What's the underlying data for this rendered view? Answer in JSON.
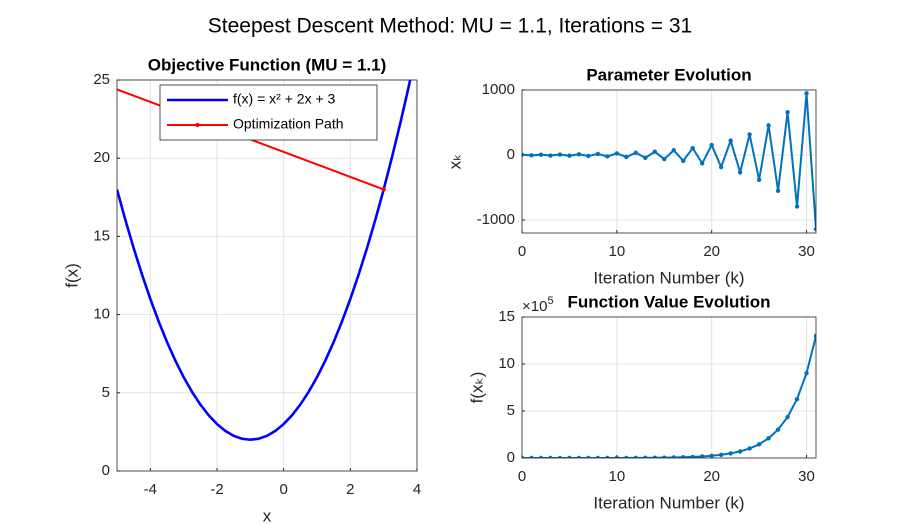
{
  "figure_title": "Steepest Descent Method: MU = 1.1, Iterations = 31",
  "chart_data": [
    {
      "type": "line",
      "title": "Objective Function (MU = 1.1)",
      "xlabel": "x",
      "ylabel": "f(x)",
      "xlim": [
        -5,
        4
      ],
      "ylim": [
        0,
        25
      ],
      "xticks": [
        -4,
        -2,
        0,
        2,
        4
      ],
      "yticks": [
        0,
        5,
        10,
        15,
        20,
        25
      ],
      "grid": true,
      "legend": "north",
      "series": [
        {
          "name": "f(x) = x² + 2x + 3",
          "color": "#0000ff",
          "marker": false,
          "x": [
            -5,
            -4.75,
            -4.5,
            -4.25,
            -4,
            -3.75,
            -3.5,
            -3.25,
            -3,
            -2.75,
            -2.5,
            -2.25,
            -2,
            -1.75,
            -1.5,
            -1.25,
            -1,
            -0.75,
            -0.5,
            -0.25,
            0,
            0.25,
            0.5,
            0.75,
            1,
            1.25,
            1.5,
            1.75,
            2,
            2.25,
            2.5,
            2.75,
            3,
            3.25,
            3.5,
            3.75,
            4
          ],
          "values": [
            18,
            16.0625,
            14.25,
            12.5625,
            11,
            9.5625,
            8.25,
            7.0625,
            6,
            5.0625,
            4.25,
            3.5625,
            3,
            2.5625,
            2.25,
            2.0625,
            2,
            2.0625,
            2.25,
            2.5625,
            3,
            3.5625,
            4.25,
            5.0625,
            6,
            7.0625,
            8.25,
            9.5625,
            11,
            12.5625,
            14.25,
            16.0625,
            18,
            20.0625,
            22.25,
            24.5625,
            27
          ]
        },
        {
          "name": "Optimization Path",
          "color": "#ff0000",
          "marker": true,
          "x": [
            3,
            -5.8,
            4.76,
            -7.91,
            7.29,
            -10.95,
            10.94,
            -15.33,
            16.2,
            -21.64,
            23.77,
            -30.72,
            34.66,
            -43.8,
            50.36,
            -62.63,
            72.95,
            -89.74,
            105.49,
            -128.79,
            152.35,
            -185.02,
            219.82,
            -265.99,
            316.99,
            -382.58,
            456.9,
            -550.48,
            658.38,
            -792.25,
            948.51,
            -1140.41
          ],
          "values": [
            18,
            25.04,
            35.18,
            49.78,
            70.8,
            101.07,
            144.66,
            207.43,
            297.82,
            427.97,
            615.4,
            885.3,
            1273.95,
            1833.61,
            2639.51,
            3800.02,
            5471.15,
            7877.57,
            11342.82,
            16332.8,
            23518.3,
            33865.5,
            48765.5,
            70221.4,
            101118,
            145609,
            209676,
            301933,
            434782,
            626086,
            901562,
            1298248
          ]
        }
      ]
    },
    {
      "type": "line",
      "title": "Parameter Evolution",
      "xlabel": "Iteration Number (k)",
      "ylabel": "xₖ",
      "xlim": [
        0,
        31
      ],
      "ylim": [
        -1200,
        1000
      ],
      "xticks": [
        0,
        10,
        20,
        30
      ],
      "yticks": [
        -1000,
        0,
        1000
      ],
      "grid": true,
      "x": [
        0,
        1,
        2,
        3,
        4,
        5,
        6,
        7,
        8,
        9,
        10,
        11,
        12,
        13,
        14,
        15,
        16,
        17,
        18,
        19,
        20,
        21,
        22,
        23,
        24,
        25,
        26,
        27,
        28,
        29,
        30,
        31
      ],
      "series": [
        {
          "color": "#0072bd",
          "marker": true,
          "values": [
            3,
            -5.8,
            4.76,
            -7.91,
            7.29,
            -10.95,
            10.94,
            -15.33,
            16.2,
            -21.64,
            23.77,
            -30.72,
            34.66,
            -43.8,
            50.36,
            -62.63,
            72.95,
            -89.74,
            105.49,
            -128.79,
            152.35,
            -185.02,
            219.82,
            -265.99,
            316.99,
            -382.58,
            456.9,
            -550.48,
            658.38,
            -792.25,
            948.51,
            -1140.41
          ]
        }
      ]
    },
    {
      "type": "line",
      "title": "Function Value Evolution",
      "xlabel": "Iteration Number (k)",
      "ylabel": "f(xₖ)",
      "y_multiplier": "×10",
      "y_multiplier_exponent": "5",
      "xlim": [
        0,
        31
      ],
      "ylim": [
        0,
        1500000
      ],
      "xticks": [
        0,
        10,
        20,
        30
      ],
      "yticks": [
        0,
        {
          "value": 500000,
          "label": "5"
        },
        {
          "value": 1000000,
          "label": "10"
        },
        {
          "value": 1500000,
          "label": "15"
        }
      ],
      "grid": true,
      "x": [
        0,
        1,
        2,
        3,
        4,
        5,
        6,
        7,
        8,
        9,
        10,
        11,
        12,
        13,
        14,
        15,
        16,
        17,
        18,
        19,
        20,
        21,
        22,
        23,
        24,
        25,
        26,
        27,
        28,
        29,
        30,
        31
      ],
      "series": [
        {
          "color": "#0072bd",
          "marker": true,
          "values": [
            18,
            25.04,
            35.18,
            49.78,
            70.8,
            101.07,
            144.66,
            207.43,
            297.82,
            427.97,
            615.4,
            885.3,
            1273.95,
            1833.61,
            2639.51,
            3800.02,
            5471.15,
            7877.57,
            11342.82,
            16332.8,
            23518.3,
            33865.5,
            48765.5,
            70221.4,
            101118,
            145609,
            209676,
            301933,
            434782,
            626086,
            901562,
            1298248
          ]
        }
      ]
    }
  ]
}
